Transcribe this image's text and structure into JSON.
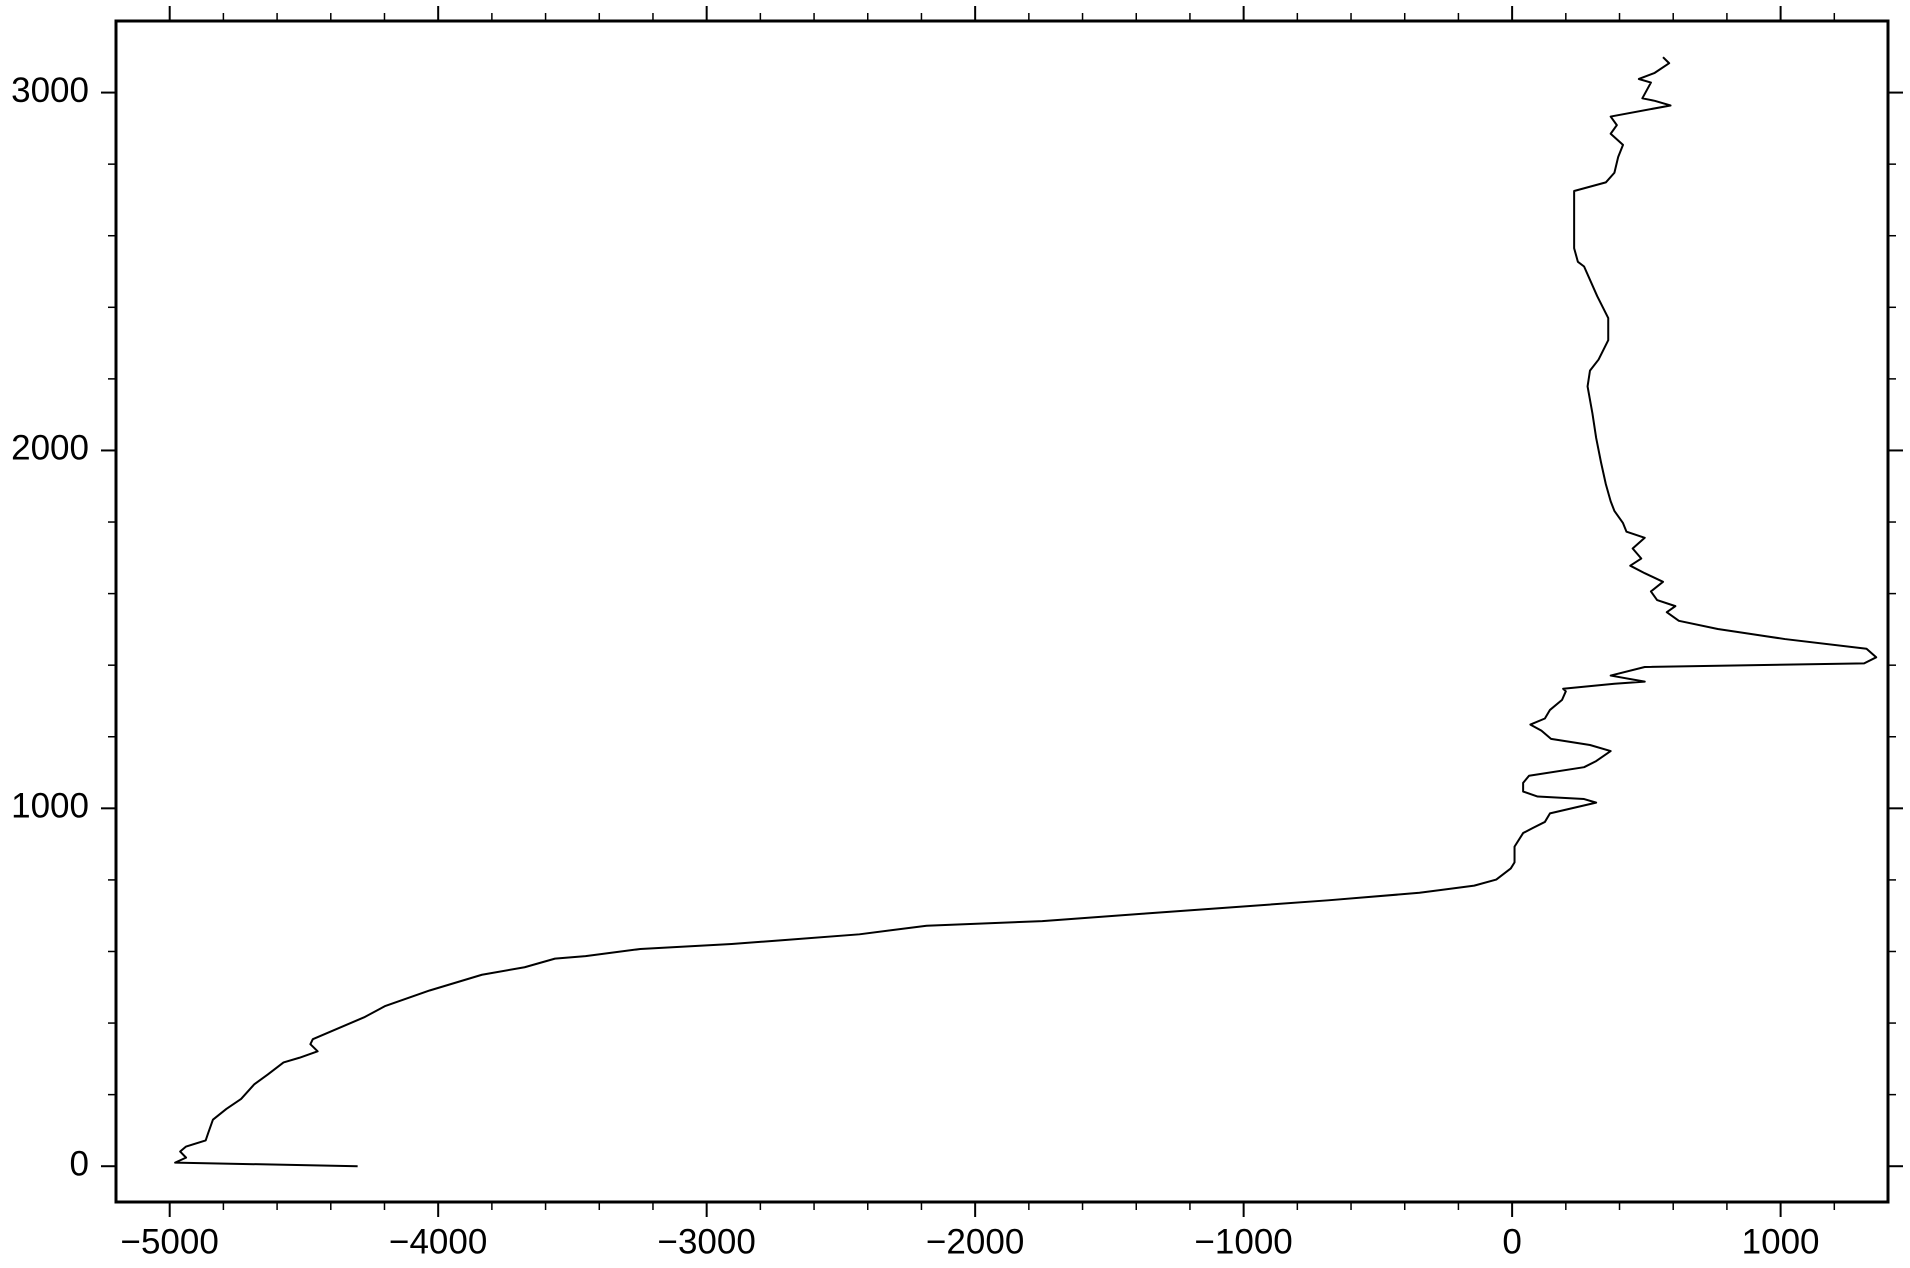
{
  "chart_data": {
    "type": "line",
    "color": "#000000",
    "x": [
      -4300,
      -4980,
      -4939,
      -4961,
      -4939,
      -4866,
      -4857,
      -4839,
      -4789,
      -4734,
      -4685,
      -4635,
      -4576,
      -4517,
      -4449,
      -4476,
      -4467,
      -4276,
      -4199,
      -4032,
      -3837,
      -3678,
      -3565,
      -3451,
      -3247,
      -2907,
      -2726,
      -2431,
      -2181,
      -1750,
      -1365,
      -685,
      -345,
      -141,
      -59,
      -5,
      9,
      9,
      41,
      77,
      122,
      141,
      313,
      268,
      95,
      41,
      41,
      63,
      268,
      313,
      367,
      290,
      145,
      109,
      68,
      122,
      141,
      186,
      200,
      190,
      381,
      494,
      367,
      494,
      1311,
      1356,
      1320,
      1016,
      766,
      621,
      576,
      608,
      540,
      517,
      562,
      494,
      440,
      481,
      449,
      494,
      426,
      413,
      381,
      367,
      349,
      331,
      313,
      299,
      281,
      290,
      322,
      358,
      358,
      317,
      268,
      245,
      231,
      231,
      231,
      349,
      381,
      395,
      413,
      367,
      390,
      367,
      590,
      531,
      485,
      517,
      472,
      531,
      585,
      562
    ],
    "values": [
      0,
      10,
      24,
      41,
      55,
      72,
      92,
      130,
      160,
      188,
      229,
      256,
      290,
      303,
      321,
      341,
      355,
      416,
      447,
      491,
      535,
      556,
      580,
      587,
      607,
      621,
      631,
      648,
      672,
      685,
      706,
      743,
      764,
      784,
      801,
      832,
      849,
      893,
      931,
      945,
      962,
      986,
      1016,
      1026,
      1033,
      1047,
      1071,
      1091,
      1115,
      1132,
      1160,
      1177,
      1194,
      1217,
      1234,
      1251,
      1275,
      1303,
      1327,
      1334,
      1348,
      1354,
      1371,
      1395,
      1405,
      1422,
      1446,
      1473,
      1501,
      1524,
      1548,
      1565,
      1582,
      1606,
      1633,
      1657,
      1678,
      1698,
      1726,
      1756,
      1773,
      1797,
      1831,
      1858,
      1906,
      1967,
      2035,
      2104,
      2179,
      2223,
      2254,
      2308,
      2370,
      2431,
      2514,
      2527,
      2565,
      2684,
      2725,
      2749,
      2776,
      2820,
      2854,
      2885,
      2909,
      2933,
      2964,
      2977,
      2984,
      3028,
      3038,
      3055,
      3082,
      3099
    ],
    "xlim": [
      -5200,
      1400
    ],
    "ylim": [
      -100,
      3200
    ],
    "xticks": [
      {
        "value": -5000,
        "label": "−5000"
      },
      {
        "value": -4000,
        "label": "−4000"
      },
      {
        "value": -3000,
        "label": "−3000"
      },
      {
        "value": -2000,
        "label": "−2000"
      },
      {
        "value": -1000,
        "label": "−1000"
      },
      0,
      1000
    ],
    "yticks": [
      0,
      1000,
      2000,
      3000
    ],
    "xminorticks": [
      -4800,
      -4600,
      -4400,
      -4200,
      -3800,
      -3600,
      -3400,
      -3200,
      -2800,
      -2600,
      -2400,
      -2200,
      -1800,
      -1600,
      -1400,
      -1200,
      -800,
      -600,
      -400,
      -200,
      200,
      400,
      600,
      800,
      1200
    ],
    "yminorticks": [
      200,
      400,
      600,
      800,
      1200,
      1400,
      1600,
      1800,
      2200,
      2400,
      2600,
      2800
    ]
  }
}
